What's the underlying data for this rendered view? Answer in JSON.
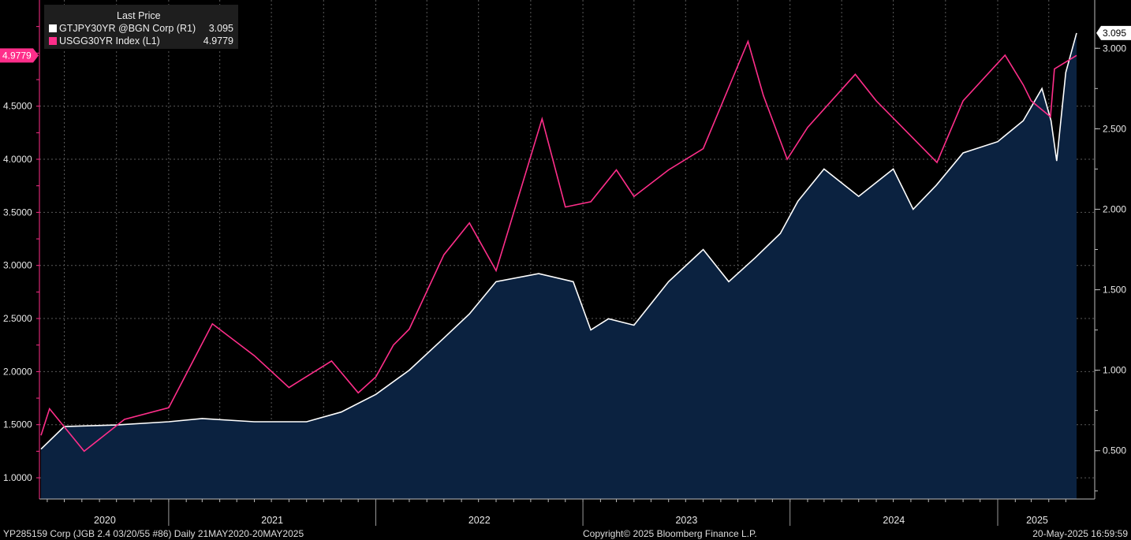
{
  "legend": {
    "header": "Last Price",
    "series1_label": "GTJPY30YR @BGN Corp  (R1)",
    "series1_value": "3.095",
    "series2_label": "USGG30YR Index  (L1)",
    "series2_value": "4.9779"
  },
  "footer": {
    "left": "YP285159 Corp (JGB 2.4 03/20/55 #86)  Daily 21MAY2020-20MAY2025",
    "center": "Copyright© 2025 Bloomberg Finance L.P.",
    "right": "20-May-2025 16:59:59"
  },
  "colors": {
    "jgb": "#ffffff",
    "jgb_fill": "#0b2240",
    "ust": "#ff2e8a",
    "grid": "#5a5a5a",
    "background": "#000000"
  },
  "chart_data": {
    "type": "line",
    "x_axis": {
      "range": [
        "2020-05-21",
        "2025-05-20"
      ],
      "tick_labels": [
        "2020",
        "2021",
        "2022",
        "2023",
        "2024",
        "2025"
      ]
    },
    "y_left": {
      "range": [
        0.8,
        5.5
      ],
      "tick_labels": [
        "1.0000",
        "1.5000",
        "2.0000",
        "2.5000",
        "3.0000",
        "3.5000",
        "4.0000",
        "4.5000"
      ],
      "last_value_label": "4.9779"
    },
    "y_right": {
      "range": [
        0.2,
        3.3
      ],
      "tick_labels": [
        "0.500",
        "1.000",
        "1.500",
        "2.000",
        "2.500",
        "3.000"
      ],
      "last_value_label": "3.095"
    },
    "grid": true,
    "legend_position": "top-left",
    "series": [
      {
        "name": "GTJPY30YR @BGN Corp (R1)",
        "axis": "right",
        "style": "area",
        "x": [
          "2020-05-21",
          "2020-07-01",
          "2020-10-01",
          "2021-01-01",
          "2021-03-01",
          "2021-06-01",
          "2021-09-01",
          "2021-11-01",
          "2022-01-01",
          "2022-03-01",
          "2022-05-01",
          "2022-06-15",
          "2022-08-01",
          "2022-10-15",
          "2022-12-15",
          "2023-01-15",
          "2023-02-15",
          "2023-04-01",
          "2023-06-01",
          "2023-08-01",
          "2023-09-15",
          "2023-11-01",
          "2023-12-15",
          "2024-01-15",
          "2024-03-01",
          "2024-05-01",
          "2024-07-01",
          "2024-08-05",
          "2024-09-15",
          "2024-11-01",
          "2025-01-01",
          "2025-02-15",
          "2025-03-20",
          "2025-04-05",
          "2025-04-15",
          "2025-05-01",
          "2025-05-20"
        ],
        "y": [
          0.51,
          0.65,
          0.66,
          0.68,
          0.7,
          0.68,
          0.68,
          0.74,
          0.85,
          1.0,
          1.2,
          1.35,
          1.55,
          1.6,
          1.55,
          1.25,
          1.32,
          1.28,
          1.55,
          1.75,
          1.55,
          1.7,
          1.85,
          2.05,
          2.25,
          2.08,
          2.25,
          2.0,
          2.15,
          2.35,
          2.42,
          2.55,
          2.75,
          2.55,
          2.3,
          2.85,
          3.095
        ]
      },
      {
        "name": "USGG30YR Index (L1)",
        "axis": "left",
        "style": "line",
        "x": [
          "2020-05-21",
          "2020-06-05",
          "2020-08-05",
          "2020-10-15",
          "2021-01-01",
          "2021-03-19",
          "2021-06-01",
          "2021-08-01",
          "2021-10-15",
          "2021-12-01",
          "2022-01-01",
          "2022-02-01",
          "2022-03-01",
          "2022-05-01",
          "2022-06-15",
          "2022-08-01",
          "2022-10-21",
          "2022-12-01",
          "2023-01-15",
          "2023-03-01",
          "2023-04-01",
          "2023-06-01",
          "2023-08-01",
          "2023-10-19",
          "2023-11-15",
          "2023-12-27",
          "2024-02-01",
          "2024-04-25",
          "2024-06-01",
          "2024-09-16",
          "2024-11-01",
          "2025-01-14",
          "2025-02-15",
          "2025-03-01",
          "2025-04-04",
          "2025-04-11",
          "2025-05-20"
        ],
        "y": [
          1.4,
          1.65,
          1.25,
          1.55,
          1.66,
          2.45,
          2.15,
          1.85,
          2.1,
          1.8,
          1.95,
          2.25,
          2.4,
          3.1,
          3.4,
          2.95,
          4.38,
          3.55,
          3.6,
          3.9,
          3.65,
          3.9,
          4.1,
          5.11,
          4.6,
          4.0,
          4.3,
          4.8,
          4.55,
          3.97,
          4.55,
          4.98,
          4.7,
          4.55,
          4.4,
          4.85,
          4.9779
        ]
      }
    ]
  }
}
